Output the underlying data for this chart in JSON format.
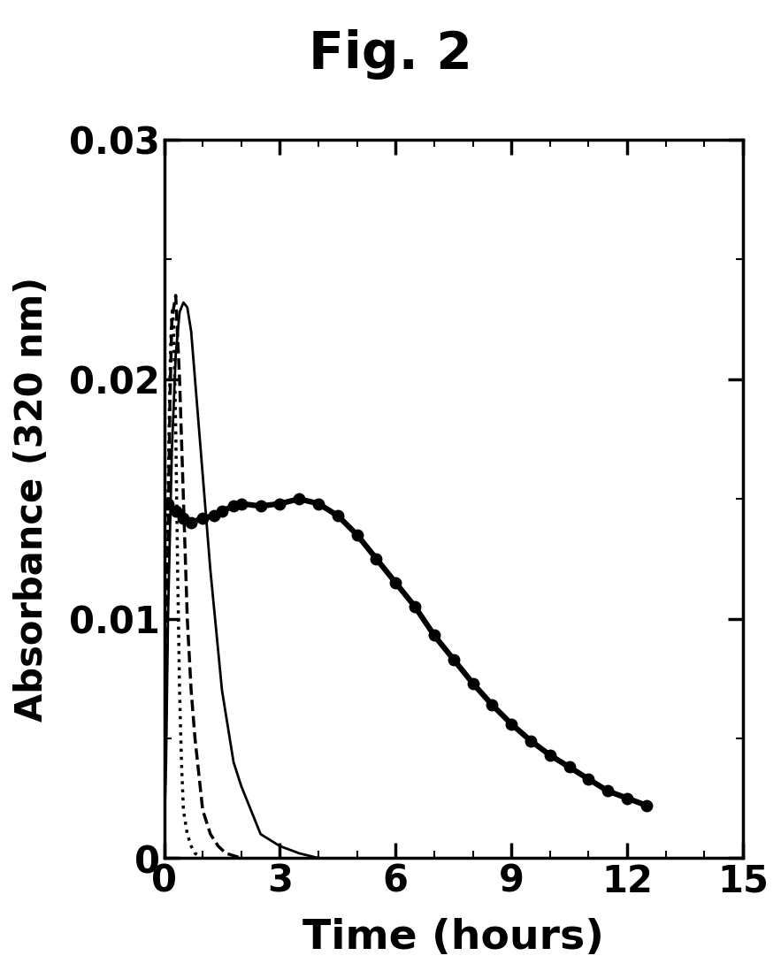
{
  "title": "Fig. 2",
  "xlabel": "Time (hours)",
  "ylabel": "Absorbance (320 nm)",
  "xlim": [
    0,
    15
  ],
  "ylim": [
    0,
    0.03
  ],
  "xticks": [
    0,
    3,
    6,
    9,
    12,
    15
  ],
  "yticks": [
    0,
    0.01,
    0.02,
    0.03
  ],
  "background_color": "#ffffff",
  "line_color": "#000000",
  "dotted_line": {
    "x": [
      0,
      0.05,
      0.1,
      0.15,
      0.18,
      0.22,
      0.25,
      0.3,
      0.35,
      0.4,
      0.45,
      0.5,
      0.6,
      0.7,
      0.8,
      0.9,
      1.0
    ],
    "y": [
      0.001,
      0.008,
      0.015,
      0.02,
      0.022,
      0.023,
      0.022,
      0.018,
      0.012,
      0.007,
      0.004,
      0.002,
      0.001,
      0.0005,
      0.0002,
      0.0001,
      0.0
    ]
  },
  "dashed_line": {
    "x": [
      0,
      0.05,
      0.1,
      0.15,
      0.2,
      0.3,
      0.4,
      0.5,
      0.6,
      0.7,
      0.8,
      1.0,
      1.2,
      1.4,
      1.6,
      1.8,
      2.0
    ],
    "y": [
      0.001,
      0.006,
      0.013,
      0.019,
      0.0225,
      0.0235,
      0.02,
      0.015,
      0.01,
      0.007,
      0.005,
      0.002,
      0.001,
      0.0005,
      0.0002,
      0.0001,
      0.0
    ]
  },
  "thin_solid_line": {
    "x": [
      0,
      0.05,
      0.1,
      0.2,
      0.3,
      0.4,
      0.5,
      0.6,
      0.7,
      0.8,
      1.0,
      1.2,
      1.5,
      1.8,
      2.0,
      2.5,
      3.0,
      3.5,
      4.0
    ],
    "y": [
      0.001,
      0.004,
      0.01,
      0.017,
      0.021,
      0.0228,
      0.0232,
      0.023,
      0.022,
      0.02,
      0.016,
      0.012,
      0.007,
      0.004,
      0.003,
      0.001,
      0.0005,
      0.0002,
      0.0
    ]
  },
  "thick_dot_line": {
    "x": [
      0,
      0.1,
      0.3,
      0.5,
      0.7,
      1.0,
      1.3,
      1.5,
      1.8,
      2.0,
      2.5,
      3.0,
      3.5,
      4.0,
      4.5,
      5.0,
      5.5,
      6.0,
      6.5,
      7.0,
      7.5,
      8.0,
      8.5,
      9.0,
      9.5,
      10.0,
      10.5,
      11.0,
      11.5,
      12.0,
      12.5
    ],
    "y": [
      0.0148,
      0.0148,
      0.0145,
      0.0142,
      0.014,
      0.0142,
      0.0143,
      0.0145,
      0.0147,
      0.0148,
      0.0147,
      0.0148,
      0.015,
      0.0148,
      0.0143,
      0.0135,
      0.0125,
      0.0115,
      0.0105,
      0.0093,
      0.0083,
      0.0073,
      0.0064,
      0.0056,
      0.0049,
      0.0043,
      0.0038,
      0.0033,
      0.0028,
      0.0025,
      0.0022
    ]
  }
}
